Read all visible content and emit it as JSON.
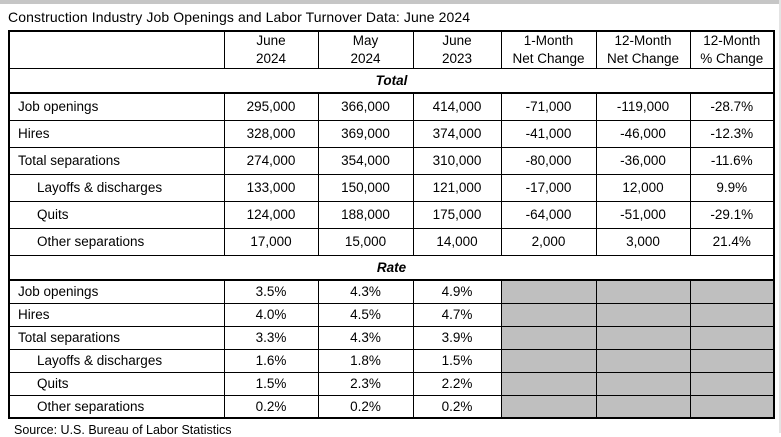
{
  "title": "Construction Industry Job Openings and Labor Turnover Data: June 2024",
  "source": "Source: U.S. Bureau of Labor Statistics",
  "colors": {
    "gray_cell": "#bfbfbf",
    "border": "#000000",
    "background": "#ffffff",
    "edge_strip": "#c6c6c6"
  },
  "chart_data": {
    "type": "table",
    "title": "Construction Industry Job Openings and Labor Turnover Data: June 2024",
    "source": "Source: U.S. Bureau of Labor Statistics",
    "columns": [
      "",
      "June\n2024",
      "May\n2024",
      "June\n2023",
      "1-Month\nNet Change",
      "12-Month\nNet Change",
      "12-Month\n% Change"
    ],
    "sections": [
      {
        "label": "Total",
        "rows": [
          {
            "label": "Job openings",
            "indent": false,
            "values": [
              "295,000",
              "366,000",
              "414,000",
              "-71,000",
              "-119,000",
              "-28.7%"
            ]
          },
          {
            "label": "Hires",
            "indent": false,
            "values": [
              "328,000",
              "369,000",
              "374,000",
              "-41,000",
              "-46,000",
              "-12.3%"
            ]
          },
          {
            "label": "Total separations",
            "indent": false,
            "values": [
              "274,000",
              "354,000",
              "310,000",
              "-80,000",
              "-36,000",
              "-11.6%"
            ]
          },
          {
            "label": "Layoffs & discharges",
            "indent": true,
            "values": [
              "133,000",
              "150,000",
              "121,000",
              "-17,000",
              "12,000",
              "9.9%"
            ]
          },
          {
            "label": "Quits",
            "indent": true,
            "values": [
              "124,000",
              "188,000",
              "175,000",
              "-64,000",
              "-51,000",
              "-29.1%"
            ]
          },
          {
            "label": "Other separations",
            "indent": true,
            "values": [
              "17,000",
              "15,000",
              "14,000",
              "2,000",
              "3,000",
              "21.4%"
            ]
          }
        ]
      },
      {
        "label": "Rate",
        "rows": [
          {
            "label": "Job openings",
            "indent": false,
            "values": [
              "3.5%",
              "4.3%",
              "4.9%",
              null,
              null,
              null
            ]
          },
          {
            "label": "Hires",
            "indent": false,
            "values": [
              "4.0%",
              "4.5%",
              "4.7%",
              null,
              null,
              null
            ]
          },
          {
            "label": "Total separations",
            "indent": false,
            "values": [
              "3.3%",
              "4.3%",
              "3.9%",
              null,
              null,
              null
            ]
          },
          {
            "label": "Layoffs & discharges",
            "indent": true,
            "values": [
              "1.6%",
              "1.8%",
              "1.5%",
              null,
              null,
              null
            ]
          },
          {
            "label": "Quits",
            "indent": true,
            "values": [
              "1.5%",
              "2.3%",
              "2.2%",
              null,
              null,
              null
            ]
          },
          {
            "label": "Other separations",
            "indent": true,
            "values": [
              "0.2%",
              "0.2%",
              "0.2%",
              null,
              null,
              null
            ]
          }
        ]
      }
    ]
  }
}
